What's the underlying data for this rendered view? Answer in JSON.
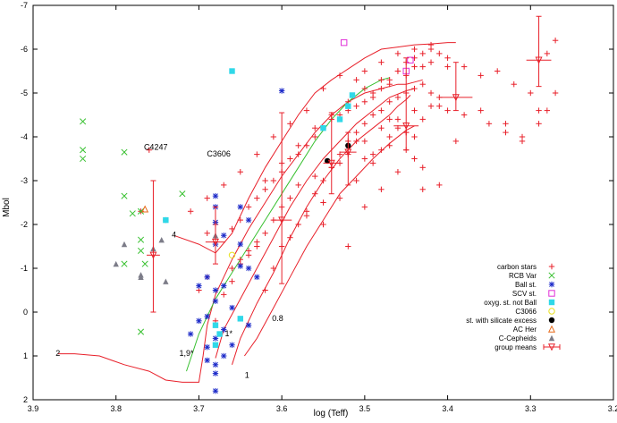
{
  "chart_data": {
    "type": "scatter",
    "title": "",
    "xlabel": "log (Teff)",
    "ylabel": "Mbol",
    "xlim": [
      3.9,
      3.2
    ],
    "ylim": [
      2,
      -7
    ],
    "x_reversed": true,
    "y_reversed": true,
    "grid": false,
    "legend_position": "bottom-right",
    "x_ticks": [
      3.9,
      3.8,
      3.7,
      3.6,
      3.5,
      3.4,
      3.3,
      3.2
    ],
    "x_tick_labels": [
      "3.9",
      "3.8",
      "3.7",
      "3.6",
      "3.5",
      "3.4",
      "3.3",
      "3.2"
    ],
    "y_ticks": [
      -7,
      -6,
      -5,
      -4,
      -3,
      -2,
      -1,
      0,
      1,
      2
    ],
    "y_tick_labels": [
      "-7",
      "-6",
      "-5",
      "-4",
      "-3",
      "-2",
      "-1",
      "0",
      "1",
      "2"
    ],
    "annotations": [
      {
        "text": "C4247",
        "x": 3.752,
        "y": -3.7
      },
      {
        "text": "C3606",
        "x": 3.676,
        "y": -3.55
      },
      {
        "text": "4",
        "x": 3.73,
        "y": -1.7
      },
      {
        "text": "2",
        "x": 3.87,
        "y": 1.0
      },
      {
        "text": "1,9*",
        "x": 3.715,
        "y": 1.0
      },
      {
        "text": "1*",
        "x": 3.664,
        "y": 0.55
      },
      {
        "text": "1",
        "x": 3.642,
        "y": 1.5
      },
      {
        "text": "0.8",
        "x": 3.605,
        "y": 0.2
      }
    ],
    "series": [
      {
        "name": "carbon stars",
        "marker": "plus",
        "color": "#e8202a",
        "x": [
          3.77,
          3.69,
          3.68,
          3.66,
          3.65,
          3.64,
          3.63,
          3.62,
          3.61,
          3.6,
          3.59,
          3.58,
          3.57,
          3.56,
          3.55,
          3.54,
          3.53,
          3.52,
          3.51,
          3.5,
          3.49,
          3.48,
          3.47,
          3.46,
          3.45,
          3.44,
          3.43,
          3.42,
          3.41,
          3.4,
          3.38,
          3.36,
          3.34,
          3.32,
          3.3,
          3.28,
          3.27,
          3.6,
          3.59,
          3.58,
          3.57,
          3.56,
          3.55,
          3.54,
          3.53,
          3.52,
          3.51,
          3.5,
          3.49,
          3.48,
          3.47,
          3.46,
          3.45,
          3.44,
          3.43,
          3.42,
          3.41,
          3.66,
          3.65,
          3.64,
          3.63,
          3.62,
          3.61,
          3.6,
          3.58,
          3.56,
          3.54,
          3.52,
          3.5,
          3.48,
          3.46,
          3.44,
          3.42,
          3.4,
          3.38,
          3.35,
          3.33,
          3.31,
          3.29,
          3.28,
          3.27,
          3.55,
          3.53,
          3.51,
          3.49,
          3.47,
          3.45,
          3.43,
          3.41,
          3.62,
          3.6,
          3.58,
          3.56,
          3.54,
          3.52,
          3.5,
          3.48,
          3.46,
          3.44,
          3.42,
          3.4,
          3.7,
          3.69,
          3.68,
          3.67,
          3.66,
          3.65,
          3.64,
          3.63,
          3.62,
          3.61,
          3.59,
          3.57,
          3.55,
          3.53,
          3.51,
          3.49,
          3.47,
          3.45,
          3.43,
          3.41,
          3.39,
          3.36,
          3.33,
          3.31,
          3.29,
          3.52,
          3.5,
          3.48,
          3.46,
          3.44,
          3.43,
          3.45,
          3.47,
          3.49,
          3.51,
          3.53,
          3.55,
          3.57,
          3.59,
          3.61,
          3.63,
          3.65,
          3.67,
          3.69,
          3.71,
          3.74,
          3.76,
          3.5,
          3.48,
          3.46,
          3.44,
          3.42,
          3.47,
          3.45,
          3.43,
          3.46,
          3.44,
          3.48,
          3.5
        ],
        "y": [
          -2.3,
          -1.8,
          -2.0,
          -1.9,
          -2.1,
          -2.4,
          -2.6,
          -2.8,
          -3.0,
          -3.2,
          -3.5,
          -3.6,
          -3.8,
          -4.0,
          -4.2,
          -4.4,
          -4.5,
          -4.6,
          -4.7,
          -4.8,
          -5.0,
          -5.1,
          -5.3,
          -5.5,
          -5.7,
          -5.8,
          -5.9,
          -6.0,
          -5.9,
          -5.8,
          -5.6,
          -5.4,
          -5.5,
          -5.2,
          -5.0,
          -5.9,
          -6.2,
          -1.5,
          -1.7,
          -2.0,
          -2.3,
          -2.7,
          -3.0,
          -3.3,
          -3.6,
          -3.9,
          -4.1,
          -4.3,
          -4.5,
          -4.6,
          -4.8,
          -4.9,
          -5.0,
          -5.1,
          -5.2,
          -5.0,
          -4.9,
          -1.0,
          -1.2,
          -1.4,
          -1.6,
          -1.8,
          -2.1,
          -2.4,
          -2.9,
          -3.1,
          -3.3,
          -3.6,
          -3.9,
          -4.2,
          -4.4,
          -4.6,
          -4.7,
          -4.6,
          -4.5,
          -4.3,
          -4.1,
          -4.0,
          -4.3,
          -4.6,
          -5.0,
          -2.0,
          -2.6,
          -3.0,
          -3.4,
          -3.8,
          -4.1,
          -4.4,
          -4.7,
          -3.0,
          -3.4,
          -3.8,
          -4.2,
          -4.5,
          -4.8,
          -5.1,
          -5.3,
          -5.5,
          -5.6,
          -5.7,
          -5.6,
          -0.5,
          -0.8,
          0.2,
          -0.4,
          -0.7,
          -1.1,
          -1.3,
          -1.5,
          -0.5,
          -1.0,
          -2.6,
          -2.2,
          -2.5,
          -3.4,
          -3.9,
          -3.6,
          -4.0,
          -3.7,
          -3.3,
          -2.9,
          -3.9,
          -4.6,
          -4.3,
          -3.9,
          -4.6,
          -1.5,
          -2.4,
          -2.8,
          -3.2,
          -3.5,
          -2.8,
          -4.1,
          -4.4,
          -4.9,
          -5.3,
          -5.4,
          -5.1,
          -4.6,
          -4.3,
          -4.0,
          -3.6,
          -3.2,
          -2.9,
          -2.6,
          -2.3,
          -2.1,
          -3.7,
          -5.5,
          -5.7,
          -5.9,
          -6.0,
          -6.1,
          -5.2,
          -5.4,
          -5.6,
          -4.2,
          -4.0,
          -3.7,
          -3.5
        ]
      },
      {
        "name": "RCB Var",
        "marker": "x",
        "color": "#38c030",
        "x": [
          3.84,
          3.84,
          3.84,
          3.79,
          3.79,
          3.77,
          3.77,
          3.77,
          3.765,
          3.79,
          3.78,
          3.72,
          3.77
        ],
        "y": [
          -4.35,
          -3.7,
          -3.5,
          -3.65,
          -2.65,
          -2.3,
          -1.65,
          -1.4,
          -1.1,
          -1.1,
          -2.25,
          -2.7,
          0.45
        ]
      },
      {
        "name": "Ball st.",
        "marker": "asterisk",
        "color": "#1a28c8",
        "x": [
          3.68,
          3.68,
          3.68,
          3.67,
          3.68,
          3.69,
          3.68,
          3.68,
          3.69,
          3.7,
          3.71,
          3.68,
          3.69,
          3.67,
          3.68,
          3.64,
          3.65,
          3.65,
          3.64,
          3.63,
          3.6,
          3.66,
          3.67,
          3.68,
          3.7,
          3.67,
          3.66,
          3.64,
          3.68,
          3.69,
          3.65
        ],
        "y": [
          -2.65,
          -2.4,
          -2.05,
          -1.75,
          -1.55,
          -0.8,
          -0.5,
          -0.25,
          0.1,
          0.2,
          0.5,
          0.6,
          0.8,
          1.0,
          1.2,
          -2.1,
          -2.4,
          -1.55,
          -1.0,
          -0.8,
          -5.05,
          -0.1,
          0.4,
          1.4,
          -0.6,
          -0.6,
          0.75,
          0.3,
          1.8,
          1.1,
          -1.05
        ]
      },
      {
        "name": "SCV st.",
        "marker": "open-square",
        "color": "#e030d8",
        "x": [
          3.525,
          3.45,
          3.445
        ],
        "y": [
          -6.15,
          -5.5,
          -5.75
        ]
      },
      {
        "name": "oxyg. st. not Ball",
        "marker": "filled-square",
        "color": "#30d8e8",
        "x": [
          3.66,
          3.74,
          3.68,
          3.65,
          3.52,
          3.515,
          3.53,
          3.55,
          3.675,
          3.68
        ],
        "y": [
          -5.5,
          -2.1,
          0.75,
          0.15,
          -4.7,
          -4.95,
          -4.4,
          -4.2,
          0.5,
          0.3
        ]
      },
      {
        "name": "C3066",
        "marker": "open-circle",
        "color": "#e8e020",
        "x": [
          3.66
        ],
        "y": [
          -1.3
        ]
      },
      {
        "name": "st. with silicate excess",
        "marker": "filled-circle",
        "color": "#000000",
        "x": [
          3.545,
          3.52
        ],
        "y": [
          -3.45,
          -3.8
        ]
      },
      {
        "name": "AC Her",
        "marker": "open-triangle",
        "color": "#e86a1a",
        "x": [
          3.765
        ],
        "y": [
          -2.35
        ]
      },
      {
        "name": "C-Cepheids",
        "marker": "filled-triangle",
        "color": "#7c7c88",
        "x": [
          3.79,
          3.8,
          3.77,
          3.77,
          3.755,
          3.74,
          3.745,
          3.68
        ],
        "y": [
          -1.55,
          -1.1,
          -0.8,
          -0.85,
          -1.45,
          -0.7,
          -1.65,
          -1.75
        ]
      },
      {
        "name": "group means",
        "marker": "open-triangle-down",
        "color": "#e8202a",
        "x": [
          3.755,
          3.68,
          3.6,
          3.54,
          3.52,
          3.45,
          3.39,
          3.29
        ],
        "y": [
          -1.3,
          -1.6,
          -2.1,
          -3.4,
          -3.65,
          -4.25,
          -4.9,
          -5.75
        ],
        "xerr": [
          0.008,
          0.012,
          0.012,
          0.01,
          0.01,
          0.015,
          0.02,
          0.015
        ],
        "yerr_low": [
          -3.0,
          -2.4,
          -4.55,
          -4.55,
          -4.1,
          -5.8,
          -5.7,
          -6.75
        ],
        "yerr_high": [
          0.0,
          -1.1,
          -0.65,
          -2.7,
          -2.9,
          -3.7,
          -4.6,
          -5.15
        ]
      }
    ],
    "tracks": [
      {
        "name": "track 4",
        "color": "#e8202a",
        "x": [
          3.73,
          3.7,
          3.68,
          3.66,
          3.64,
          3.62,
          3.6,
          3.58,
          3.56,
          3.54,
          3.52,
          3.5,
          3.48,
          3.46,
          3.44,
          3.42,
          3.4,
          3.39
        ],
        "y": [
          -1.75,
          -1.55,
          -1.35,
          -1.8,
          -2.6,
          -3.3,
          -3.9,
          -4.5,
          -5.0,
          -5.3,
          -5.55,
          -5.8,
          -6.0,
          -6.05,
          -6.1,
          -6.12,
          -6.15,
          -6.15
        ]
      },
      {
        "name": "track 2",
        "color": "#e8202a",
        "x": [
          3.87,
          3.85,
          3.82,
          3.79,
          3.76,
          3.74,
          3.72,
          3.7,
          3.695,
          3.69,
          3.68,
          3.66,
          3.64,
          3.62,
          3.6,
          3.58,
          3.56,
          3.54,
          3.52,
          3.5,
          3.48,
          3.46,
          3.45,
          3.44,
          3.43
        ],
        "y": [
          0.95,
          0.95,
          1.0,
          1.2,
          1.35,
          1.55,
          1.6,
          1.6,
          1.0,
          0.3,
          -0.4,
          -1.2,
          -1.9,
          -2.5,
          -3.1,
          -3.6,
          -4.1,
          -4.5,
          -4.8,
          -5.0,
          -5.1,
          -5.2,
          -5.2,
          -5.25,
          -5.3
        ]
      },
      {
        "name": "track 1,9*",
        "color": "#38c030",
        "x": [
          3.715,
          3.7,
          3.68,
          3.66,
          3.64,
          3.62,
          3.6,
          3.58,
          3.56,
          3.54,
          3.52,
          3.5,
          3.48,
          3.47
        ],
        "y": [
          1.35,
          0.5,
          -0.3,
          -0.9,
          -1.5,
          -2.1,
          -2.7,
          -3.3,
          -3.9,
          -4.4,
          -4.8,
          -5.1,
          -5.3,
          -5.35
        ]
      },
      {
        "name": "track 1",
        "color": "#e8202a",
        "x": [
          3.66,
          3.65,
          3.63,
          3.61,
          3.59,
          3.57,
          3.55,
          3.53,
          3.51,
          3.49,
          3.47,
          3.46,
          3.45,
          3.445
        ],
        "y": [
          1.2,
          0.6,
          -0.2,
          -0.9,
          -1.7,
          -2.4,
          -3.0,
          -3.5,
          -3.9,
          -4.2,
          -4.5,
          -4.7,
          -4.85,
          -4.95
        ]
      },
      {
        "name": "track 1*",
        "color": "#e8202a",
        "x": [
          3.68,
          3.67,
          3.65,
          3.63,
          3.61,
          3.59,
          3.57,
          3.55,
          3.53,
          3.51,
          3.49,
          3.47,
          3.45,
          3.44
        ],
        "y": [
          1.05,
          0.4,
          -0.3,
          -1.0,
          -1.7,
          -2.4,
          -3.0,
          -3.5,
          -3.9,
          -4.3,
          -4.6,
          -4.9,
          -5.05,
          -5.1
        ]
      },
      {
        "name": "track 0.8",
        "color": "#e8202a",
        "x": [
          3.645,
          3.63,
          3.61,
          3.59,
          3.57,
          3.55,
          3.53,
          3.51,
          3.49,
          3.47,
          3.45,
          3.44
        ],
        "y": [
          1.0,
          0.6,
          -0.1,
          -0.8,
          -1.5,
          -2.1,
          -2.7,
          -3.1,
          -3.5,
          -3.85,
          -4.15,
          -4.25
        ]
      }
    ]
  }
}
